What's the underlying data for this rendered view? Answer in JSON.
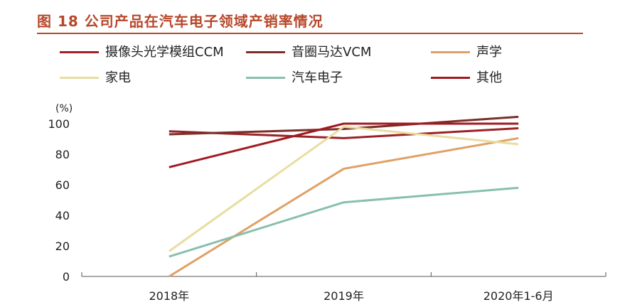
{
  "figure": {
    "title": "图 18  公司产品在汽车电子领域产销率情况",
    "title_color": "#b7472a"
  },
  "chart_data": {
    "type": "line",
    "title": "图 18  公司产品在汽车电子领域产销率情况",
    "unit_label": "(%)",
    "categories": [
      "2018年",
      "2019年",
      "2020年1-6月"
    ],
    "ylim": [
      0,
      100
    ],
    "yticks": [
      0,
      20,
      40,
      60,
      80,
      100
    ],
    "grid": false,
    "legend_position": "top",
    "series": [
      {
        "name": "摄像头光学模组CCM",
        "color": "#9b2226",
        "values": [
          95,
          90.5,
          97
        ]
      },
      {
        "name": "音圈马达VCM",
        "color": "#7a2f2a",
        "values": [
          93,
          96.5,
          104.5
        ]
      },
      {
        "name": "声学",
        "color": "#e0a065",
        "values": [
          0,
          70.5,
          90.5
        ]
      },
      {
        "name": "家电",
        "color": "#e9dda0",
        "values": [
          16.5,
          98,
          86.5
        ]
      },
      {
        "name": "汽车电子",
        "color": "#88c0ac",
        "values": [
          13,
          48.5,
          58
        ]
      },
      {
        "name": "其他",
        "color": "#a11a21",
        "values": [
          71.5,
          100,
          100
        ]
      }
    ]
  }
}
